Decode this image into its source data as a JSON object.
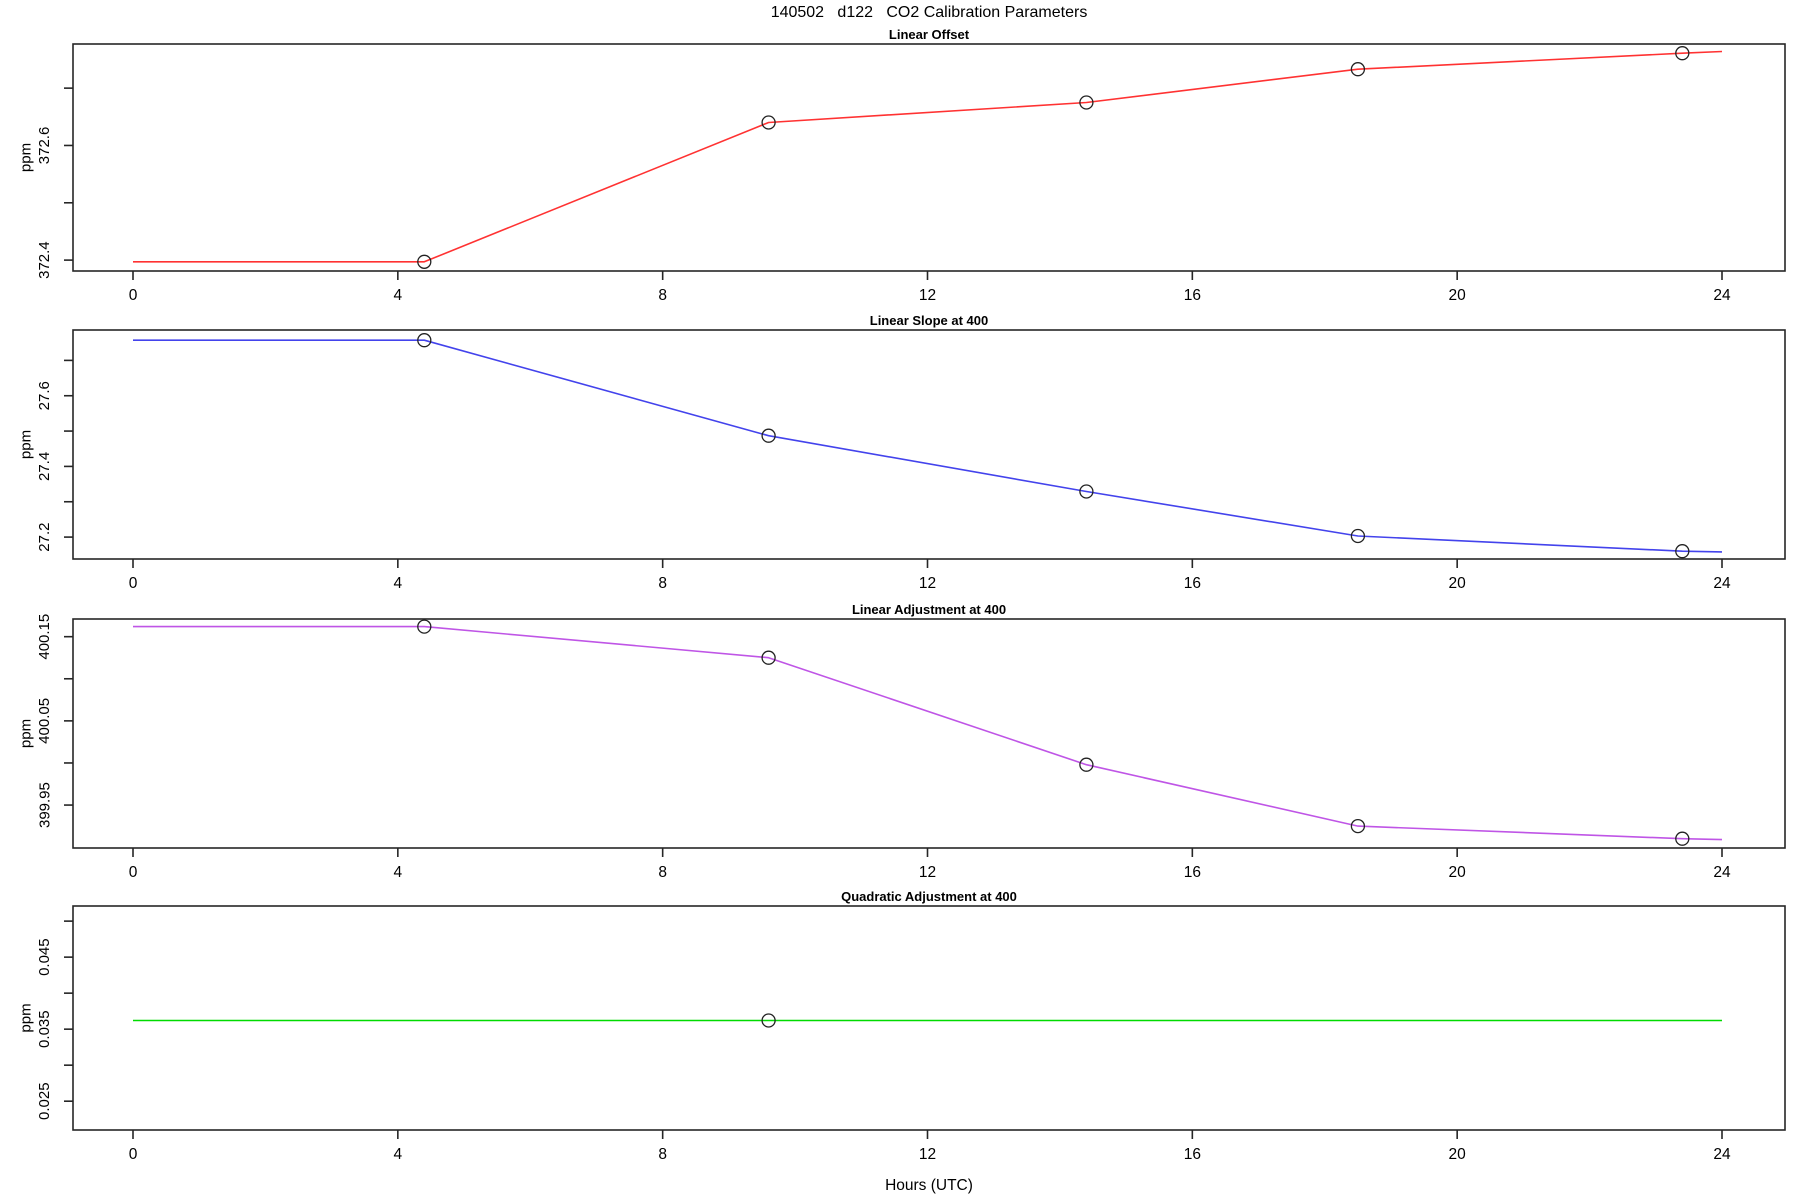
{
  "chart_data": {
    "type": "line",
    "title": "140502   d122   CO2 Calibration Parameters",
    "xlabel": "Hours (UTC)",
    "x_axis": {
      "range": [
        0,
        24
      ],
      "ticks": [
        {
          "value": 0,
          "label": "0"
        },
        {
          "value": 4,
          "label": "4"
        },
        {
          "value": 8,
          "label": "8"
        },
        {
          "value": 12,
          "label": "12"
        },
        {
          "value": 16,
          "label": "16"
        },
        {
          "value": 20,
          "label": "20"
        },
        {
          "value": 24,
          "label": "24"
        }
      ]
    },
    "marker_style": "open-circle",
    "panels": [
      {
        "title": "Linear Offset",
        "ylabel": "ppm",
        "color": "#ff3232",
        "ylim": [
          372.381,
          372.777
        ],
        "yticks": {
          "labeled": [
            {
              "value": 372.4,
              "label": "372.4"
            },
            {
              "value": 372.6,
              "label": "372.6"
            }
          ],
          "minor": [
            372.5,
            372.7
          ]
        },
        "series": {
          "x": [
            0,
            4.4,
            9.6,
            14.4,
            18.5,
            23.4,
            24
          ],
          "y": [
            372.397,
            372.397,
            372.64,
            372.675,
            372.733,
            372.761,
            372.764
          ]
        },
        "markers": {
          "x": [
            4.4,
            9.6,
            14.4,
            18.5,
            23.4
          ],
          "y": [
            372.397,
            372.64,
            372.675,
            372.733,
            372.761
          ]
        }
      },
      {
        "title": "Linear Slope at 400",
        "ylabel": "ppm",
        "color": "#4343ec",
        "ylim": [
          27.138,
          27.786
        ],
        "yticks": {
          "labeled": [
            {
              "value": 27.2,
              "label": "27.2"
            },
            {
              "value": 27.4,
              "label": "27.4"
            },
            {
              "value": 27.6,
              "label": "27.6"
            }
          ],
          "minor": [
            27.3,
            27.5,
            27.7
          ]
        },
        "series": {
          "x": [
            0,
            4.4,
            9.6,
            14.4,
            18.5,
            23.4,
            24
          ],
          "y": [
            27.757,
            27.757,
            27.487,
            27.329,
            27.203,
            27.16,
            27.158
          ]
        },
        "markers": {
          "x": [
            4.4,
            9.6,
            14.4,
            18.5,
            23.4
          ],
          "y": [
            27.757,
            27.487,
            27.329,
            27.203,
            27.16
          ]
        }
      },
      {
        "title": "Linear Adjustment at 400",
        "ylabel": "ppm",
        "color": "#bf55e6",
        "ylim": [
          399.899,
          400.171
        ],
        "yticks": {
          "labeled": [
            {
              "value": 399.95,
              "label": "399.95"
            },
            {
              "value": 400.05,
              "label": "400.05"
            },
            {
              "value": 400.15,
              "label": "400.15"
            }
          ],
          "minor": [
            400.0,
            400.1
          ]
        },
        "series": {
          "x": [
            0,
            4.4,
            9.6,
            14.4,
            18.5,
            23.4,
            24
          ],
          "y": [
            400.162,
            400.162,
            400.125,
            399.998,
            399.925,
            399.91,
            399.909
          ]
        },
        "markers": {
          "x": [
            4.4,
            9.6,
            14.4,
            18.5,
            23.4
          ],
          "y": [
            400.162,
            400.125,
            399.998,
            399.925,
            399.91
          ]
        }
      },
      {
        "title": "Quadratic Adjustment at 400",
        "ylabel": "ppm",
        "color": "#00db00",
        "ylim": [
          0.021,
          0.0521
        ],
        "yticks": {
          "labeled": [
            {
              "value": 0.025,
              "label": "0.025"
            },
            {
              "value": 0.035,
              "label": "0.035"
            },
            {
              "value": 0.045,
              "label": "0.045"
            }
          ],
          "minor": [
            0.03,
            0.04,
            0.05
          ]
        },
        "series": {
          "x": [
            0,
            24
          ],
          "y": [
            0.0362,
            0.0362
          ]
        },
        "markers": {
          "x": [
            9.6
          ],
          "y": [
            0.0362
          ]
        }
      }
    ]
  }
}
